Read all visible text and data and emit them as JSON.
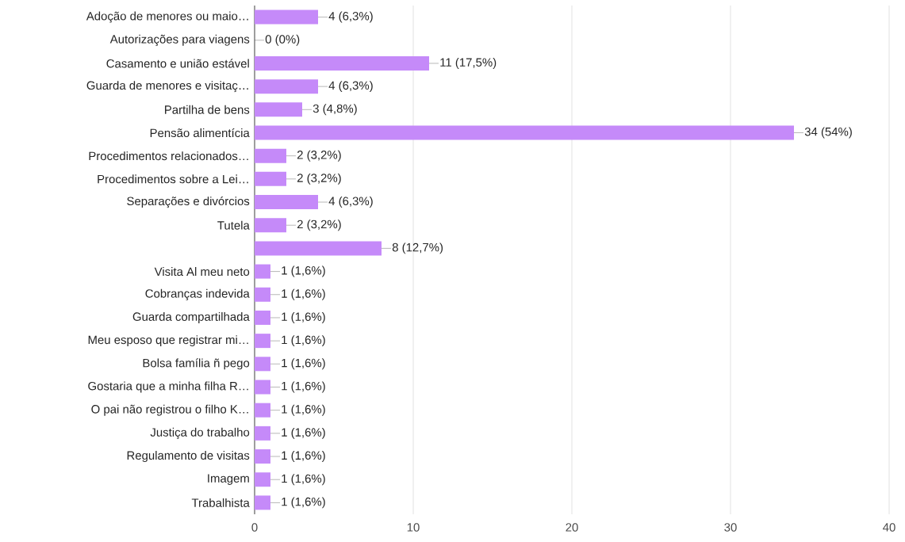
{
  "chart_data": {
    "type": "bar",
    "orientation": "horizontal",
    "categories": [
      "Adoção de menores ou maio…",
      "Autorizações para viagens",
      "Casamento e união estável",
      "Guarda de menores e visitaç…",
      "Partilha de bens",
      "Pensão alimentícia",
      "Procedimentos relacionados…",
      "Procedimentos sobre a Lei…",
      "Separações e divórcios",
      "Tutela",
      null,
      "Visita Al meu neto",
      "Cobranças indevida",
      "Guarda compartilhada",
      "Meu esposo que registrar mi…",
      "Bolsa família ñ pego",
      "Gostaria que a minha filha R…",
      "O pai não registrou o filho K…",
      "Justiça do trabalho",
      "Regulamento de visitas",
      "Imagem",
      "Trabalhista"
    ],
    "values": [
      4,
      0,
      11,
      4,
      3,
      34,
      2,
      2,
      4,
      2,
      8,
      1,
      1,
      1,
      1,
      1,
      1,
      1,
      1,
      1,
      1,
      1
    ],
    "value_labels": [
      "4 (6,3%)",
      "0 (0%)",
      "11 (17,5%)",
      "4 (6,3%)",
      "3 (4,8%)",
      "34 (54%)",
      "2 (3,2%)",
      "2 (3,2%)",
      "4 (6,3%)",
      "2 (3,2%)",
      "8 (12,7%)",
      "1 (1,6%)",
      "1 (1,6%)",
      "1 (1,6%)",
      "1 (1,6%)",
      "1 (1,6%)",
      "1 (1,6%)",
      "1 (1,6%)",
      "1 (1,6%)",
      "1 (1,6%)",
      "1 (1,6%)",
      "1 (1,6%)"
    ],
    "color": "#c58af9",
    "xlim": [
      0,
      40
    ],
    "xticks": [
      0,
      10,
      20,
      30,
      40
    ],
    "grid": "x"
  }
}
